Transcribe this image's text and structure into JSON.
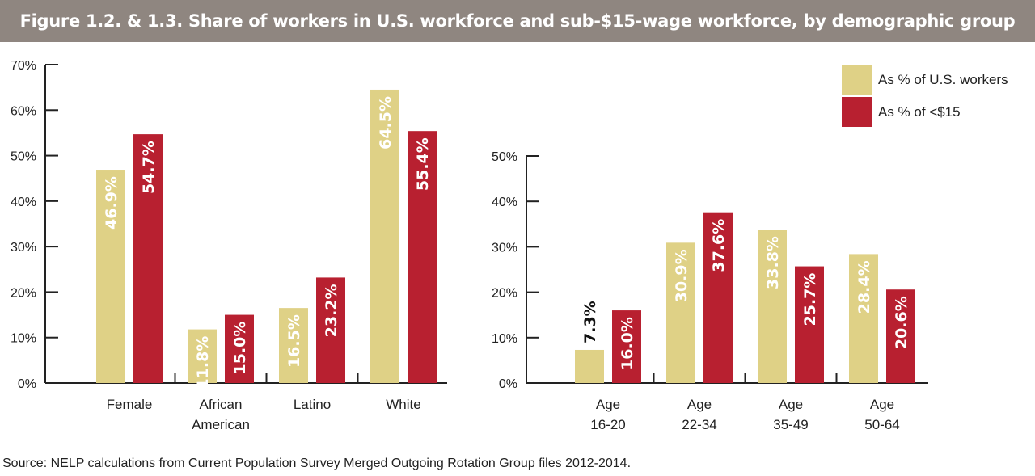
{
  "title": "Figure 1.2. & 1.3. Share of workers in U.S. workforce and sub-$15-wage workforce, by demographic group",
  "source": "Source: NELP calculations from Current Population Survey Merged Outgoing Rotation Group files 2012-2014.",
  "legend": [
    {
      "label": "As % of U.S. workers",
      "color": "#dfd186"
    },
    {
      "label": "As % of <$15",
      "color": "#b82030"
    }
  ],
  "chart_data": [
    {
      "type": "bar",
      "categories": [
        [
          "Female"
        ],
        [
          "African",
          "American"
        ],
        [
          "Latino"
        ],
        [
          "White"
        ]
      ],
      "series": [
        {
          "name": "As % of U.S. workers",
          "values": [
            46.9,
            11.8,
            16.5,
            64.5
          ],
          "labels": [
            "46.9%",
            "11.8%",
            "16.5%",
            "64.5%"
          ]
        },
        {
          "name": "As % of <$15",
          "values": [
            54.7,
            15.0,
            23.2,
            55.4
          ],
          "labels": [
            "54.7%",
            "15.0%",
            "23.2%",
            "55.4%"
          ]
        }
      ],
      "ylim": [
        0,
        70
      ],
      "yticks": [
        "0%",
        "10%",
        "20%",
        "30%",
        "40%",
        "50%",
        "60%",
        "70%"
      ],
      "grid": false
    },
    {
      "type": "bar",
      "categories": [
        [
          "Age",
          "16-20"
        ],
        [
          "Age",
          "22-34"
        ],
        [
          "Age",
          "35-49"
        ],
        [
          "Age",
          "50-64"
        ]
      ],
      "series": [
        {
          "name": "As % of U.S. workers",
          "values": [
            7.3,
            30.9,
            33.8,
            28.4
          ],
          "labels": [
            "7.3%",
            "30.9%",
            "33.8%",
            "28.4%"
          ]
        },
        {
          "name": "As % of <$15",
          "values": [
            16.0,
            37.6,
            25.7,
            20.6
          ],
          "labels": [
            "16.0%",
            "37.6%",
            "25.7%",
            "20.6%"
          ]
        }
      ],
      "ylim": [
        0,
        50
      ],
      "yticks": [
        "0%",
        "10%",
        "20%",
        "30%",
        "40%",
        "50%"
      ],
      "grid": false,
      "legend_position": "top-right"
    }
  ]
}
